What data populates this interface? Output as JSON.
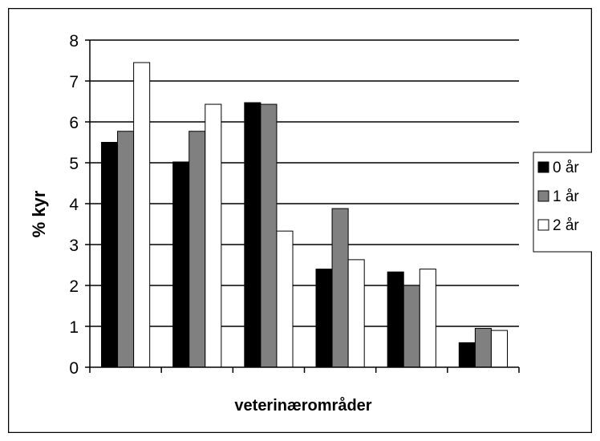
{
  "chart_data": {
    "type": "bar",
    "title": "",
    "xlabel": "veterinærområder",
    "ylabel": "% kyr",
    "ylim": [
      0,
      8
    ],
    "yticks": [
      0,
      1,
      2,
      3,
      4,
      5,
      6,
      7,
      8
    ],
    "grid": true,
    "legend_position": "right",
    "categories": [
      "",
      "",
      "",
      "",
      "",
      ""
    ],
    "series": [
      {
        "name": "0 år",
        "color": "#000000",
        "values": [
          5.5,
          5.02,
          6.47,
          2.4,
          2.33,
          0.6
        ]
      },
      {
        "name": "1 år",
        "color": "#808080",
        "values": [
          5.77,
          5.77,
          6.43,
          3.88,
          2.0,
          0.95
        ]
      },
      {
        "name": "2 år",
        "color": "#ffffff",
        "values": [
          7.45,
          6.43,
          3.33,
          2.63,
          2.4,
          0.9
        ]
      }
    ]
  }
}
